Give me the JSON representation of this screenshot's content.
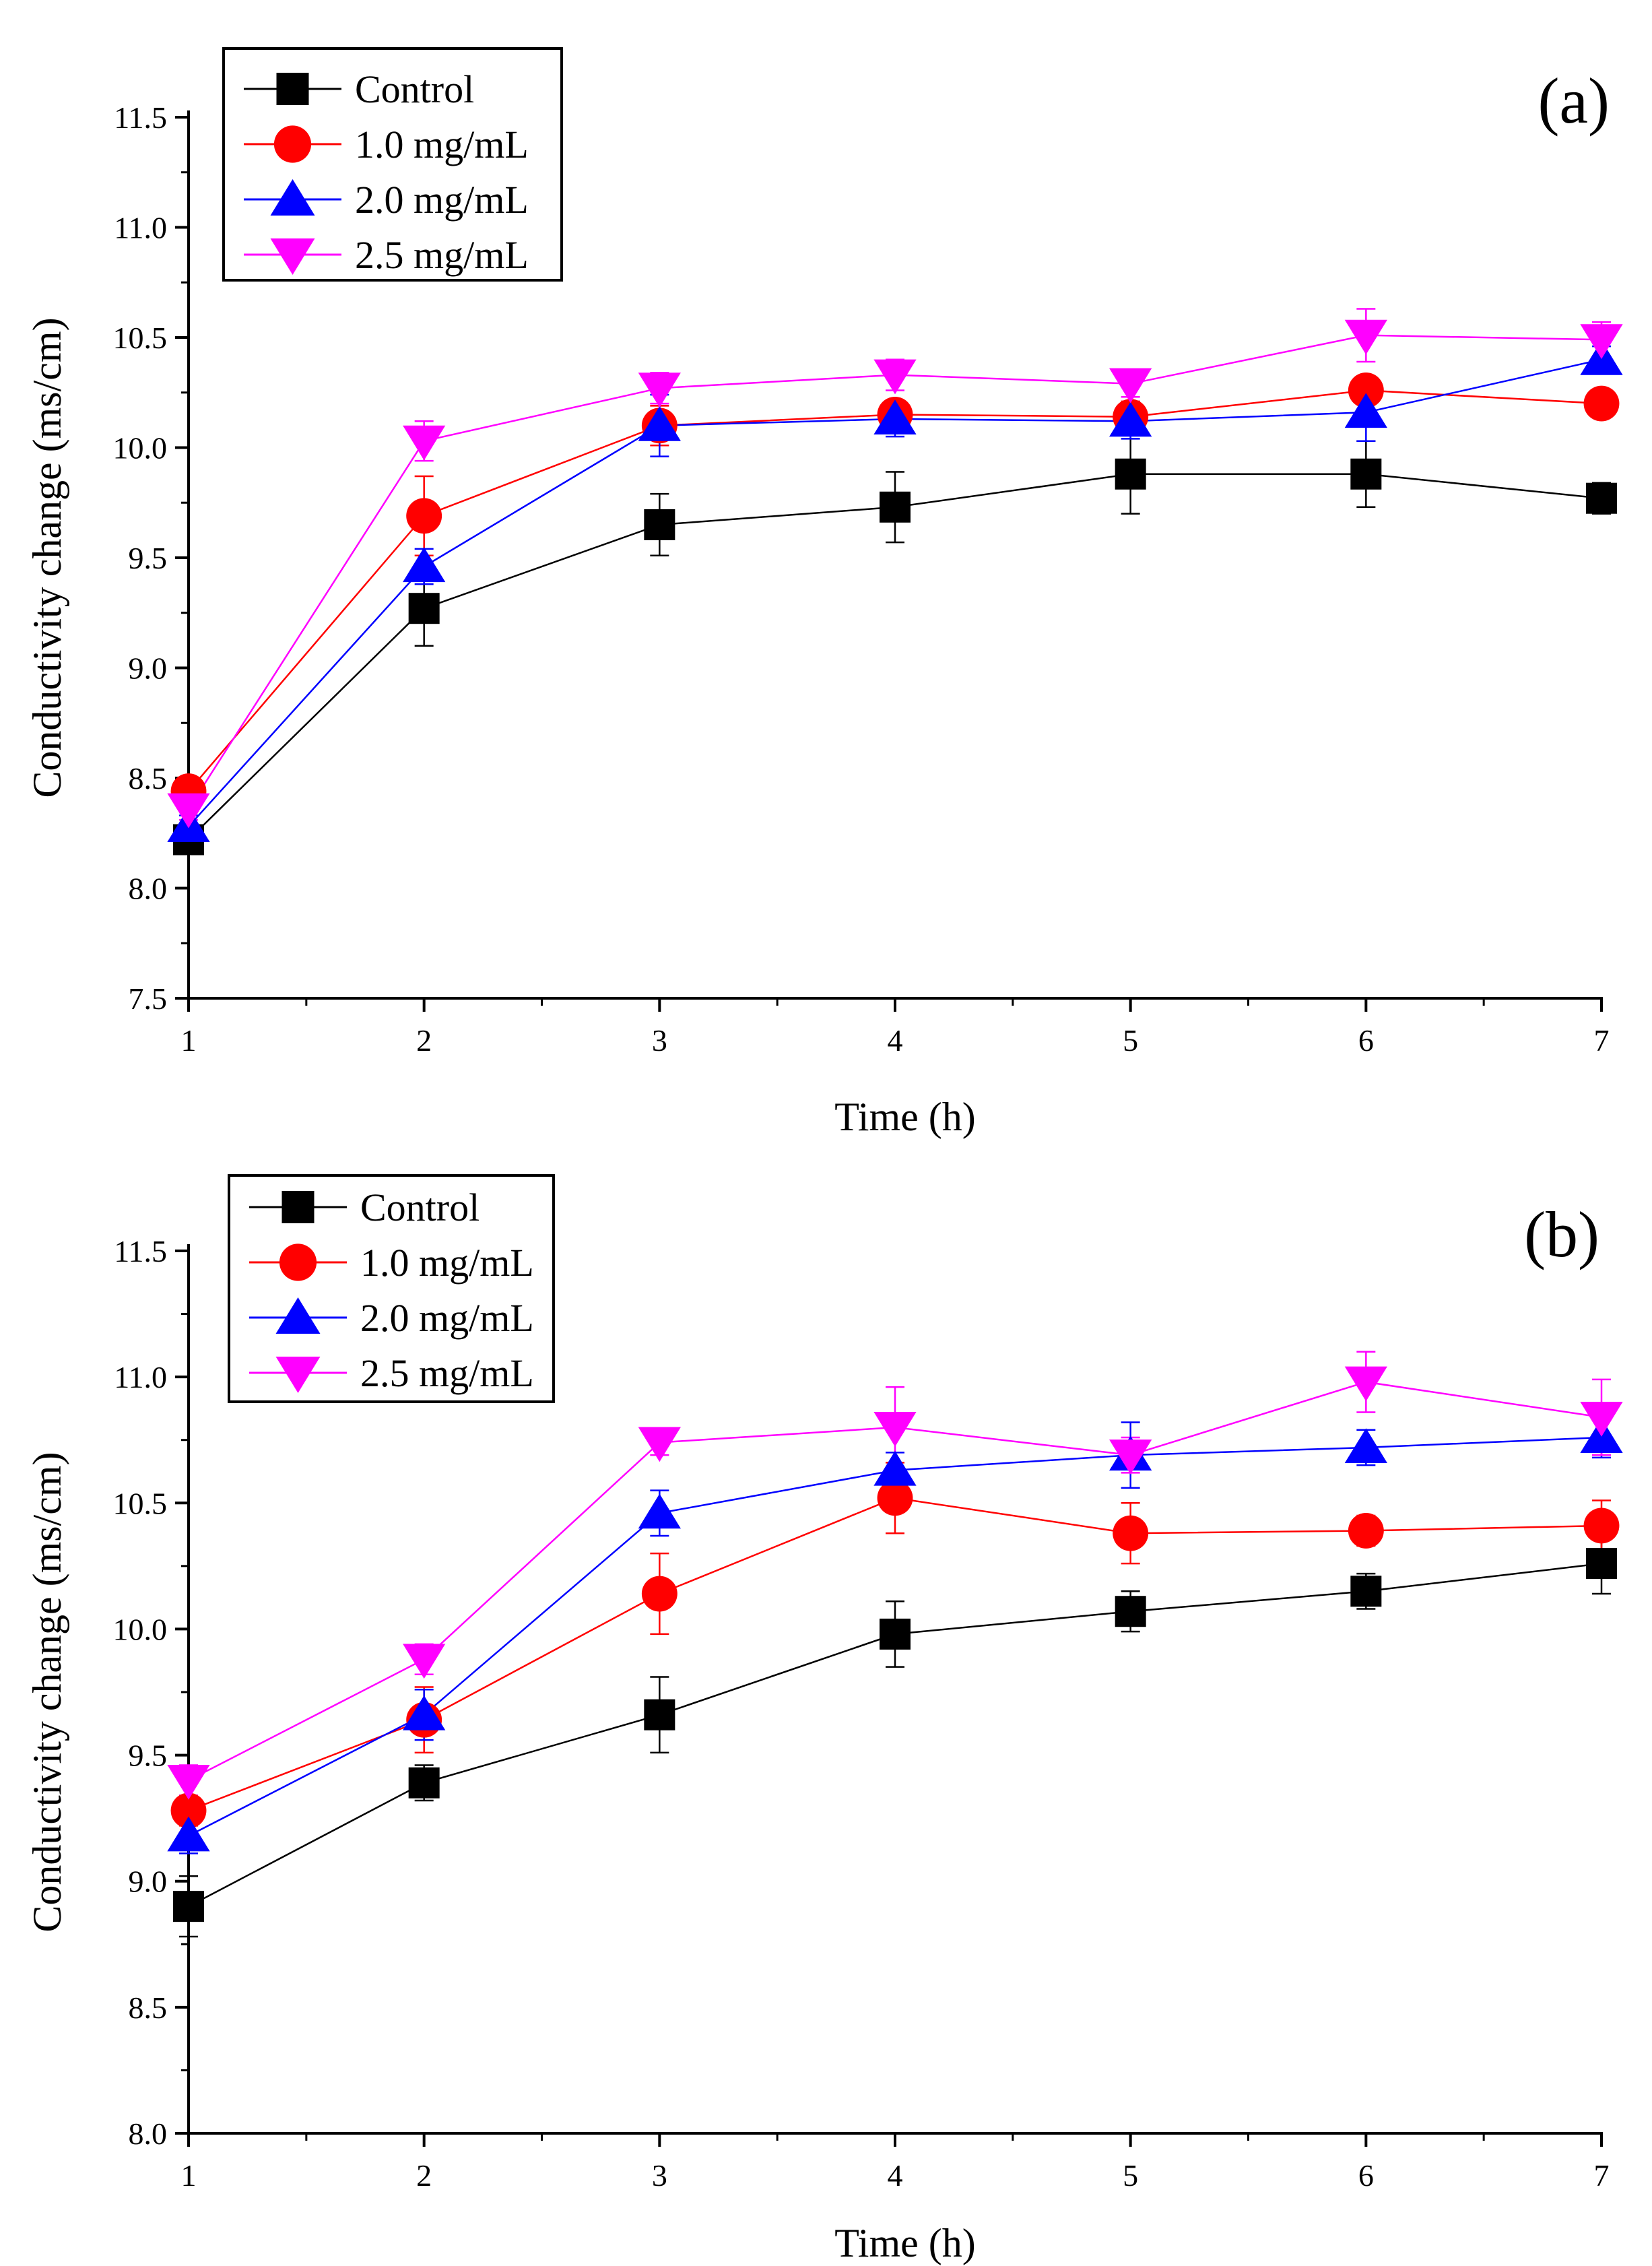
{
  "chart_data": [
    {
      "type": "line",
      "panel_label": "(a)",
      "xlabel": "Time (h)",
      "ylabel": "Conductivity change (ms/cm)",
      "x": [
        1,
        2,
        3,
        4,
        5,
        6,
        7
      ],
      "xlim": [
        1,
        7
      ],
      "xticks": [
        "1",
        "2",
        "3",
        "4",
        "5",
        "6",
        "7"
      ],
      "ylim": [
        7.5,
        11.5
      ],
      "yticks": [
        "7.5",
        "8.0",
        "8.5",
        "9.0",
        "9.5",
        "10.0",
        "10.5",
        "11.0",
        "11.5"
      ],
      "grid": false,
      "legend_position": "top-left",
      "series": [
        {
          "name": "Control",
          "color": "#000000",
          "marker": "square",
          "values": [
            8.22,
            9.27,
            9.65,
            9.73,
            9.88,
            9.88,
            9.77
          ],
          "errors": [
            0.06,
            0.17,
            0.14,
            0.16,
            0.18,
            0.15,
            0.07
          ]
        },
        {
          "name": "1.0 mg/mL",
          "color": "#ff0000",
          "marker": "circle",
          "values": [
            8.44,
            9.69,
            10.1,
            10.15,
            10.14,
            10.26,
            10.2
          ],
          "errors": [
            0.05,
            0.18,
            0.09,
            0.06,
            0.07,
            0.06,
            0.05
          ]
        },
        {
          "name": "2.0 mg/mL",
          "color": "#0000ff",
          "marker": "triangle-up",
          "values": [
            8.28,
            9.46,
            10.1,
            10.13,
            10.12,
            10.16,
            10.4
          ],
          "errors": [
            0.05,
            0.08,
            0.14,
            0.08,
            0.08,
            0.13,
            0.06
          ]
        },
        {
          "name": "2.5 mg/mL",
          "color": "#ff00ff",
          "marker": "triangle-down",
          "values": [
            8.36,
            10.03,
            10.27,
            10.33,
            10.29,
            10.51,
            10.49
          ],
          "errors": [
            0.05,
            0.09,
            0.07,
            0.07,
            0.06,
            0.12,
            0.08
          ]
        }
      ]
    },
    {
      "type": "line",
      "panel_label": "(b)",
      "xlabel": "Time (h)",
      "ylabel": "Conductivity change (ms/cm)",
      "x": [
        1,
        2,
        3,
        4,
        5,
        6,
        7
      ],
      "xlim": [
        1,
        7
      ],
      "xticks": [
        "1",
        "2",
        "3",
        "4",
        "5",
        "6",
        "7"
      ],
      "ylim": [
        8.0,
        11.5
      ],
      "yticks": [
        "8.0",
        "8.5",
        "9.0",
        "9.5",
        "10.0",
        "10.5",
        "11.0",
        "11.5"
      ],
      "grid": false,
      "legend_position": "top-left",
      "series": [
        {
          "name": "Control",
          "color": "#000000",
          "marker": "square",
          "values": [
            8.9,
            9.39,
            9.66,
            9.98,
            10.07,
            10.15,
            10.26
          ],
          "errors": [
            0.12,
            0.07,
            0.15,
            0.13,
            0.08,
            0.07,
            0.12
          ]
        },
        {
          "name": "1.0 mg/mL",
          "color": "#ff0000",
          "marker": "circle",
          "values": [
            9.28,
            9.64,
            10.14,
            10.52,
            10.38,
            10.39,
            10.41
          ],
          "errors": [
            0.06,
            0.13,
            0.16,
            0.14,
            0.12,
            0.06,
            0.1
          ]
        },
        {
          "name": "2.0 mg/mL",
          "color": "#0000ff",
          "marker": "triangle-up",
          "values": [
            9.18,
            9.66,
            10.46,
            10.63,
            10.69,
            10.72,
            10.76
          ],
          "errors": [
            0.07,
            0.1,
            0.09,
            0.07,
            0.13,
            0.07,
            0.08
          ]
        },
        {
          "name": "2.5 mg/mL",
          "color": "#ff00ff",
          "marker": "triangle-down",
          "values": [
            9.4,
            9.88,
            10.74,
            10.8,
            10.69,
            10.98,
            10.84
          ],
          "errors": [
            0.06,
            0.06,
            0.05,
            0.16,
            0.07,
            0.12,
            0.15
          ]
        }
      ]
    }
  ]
}
